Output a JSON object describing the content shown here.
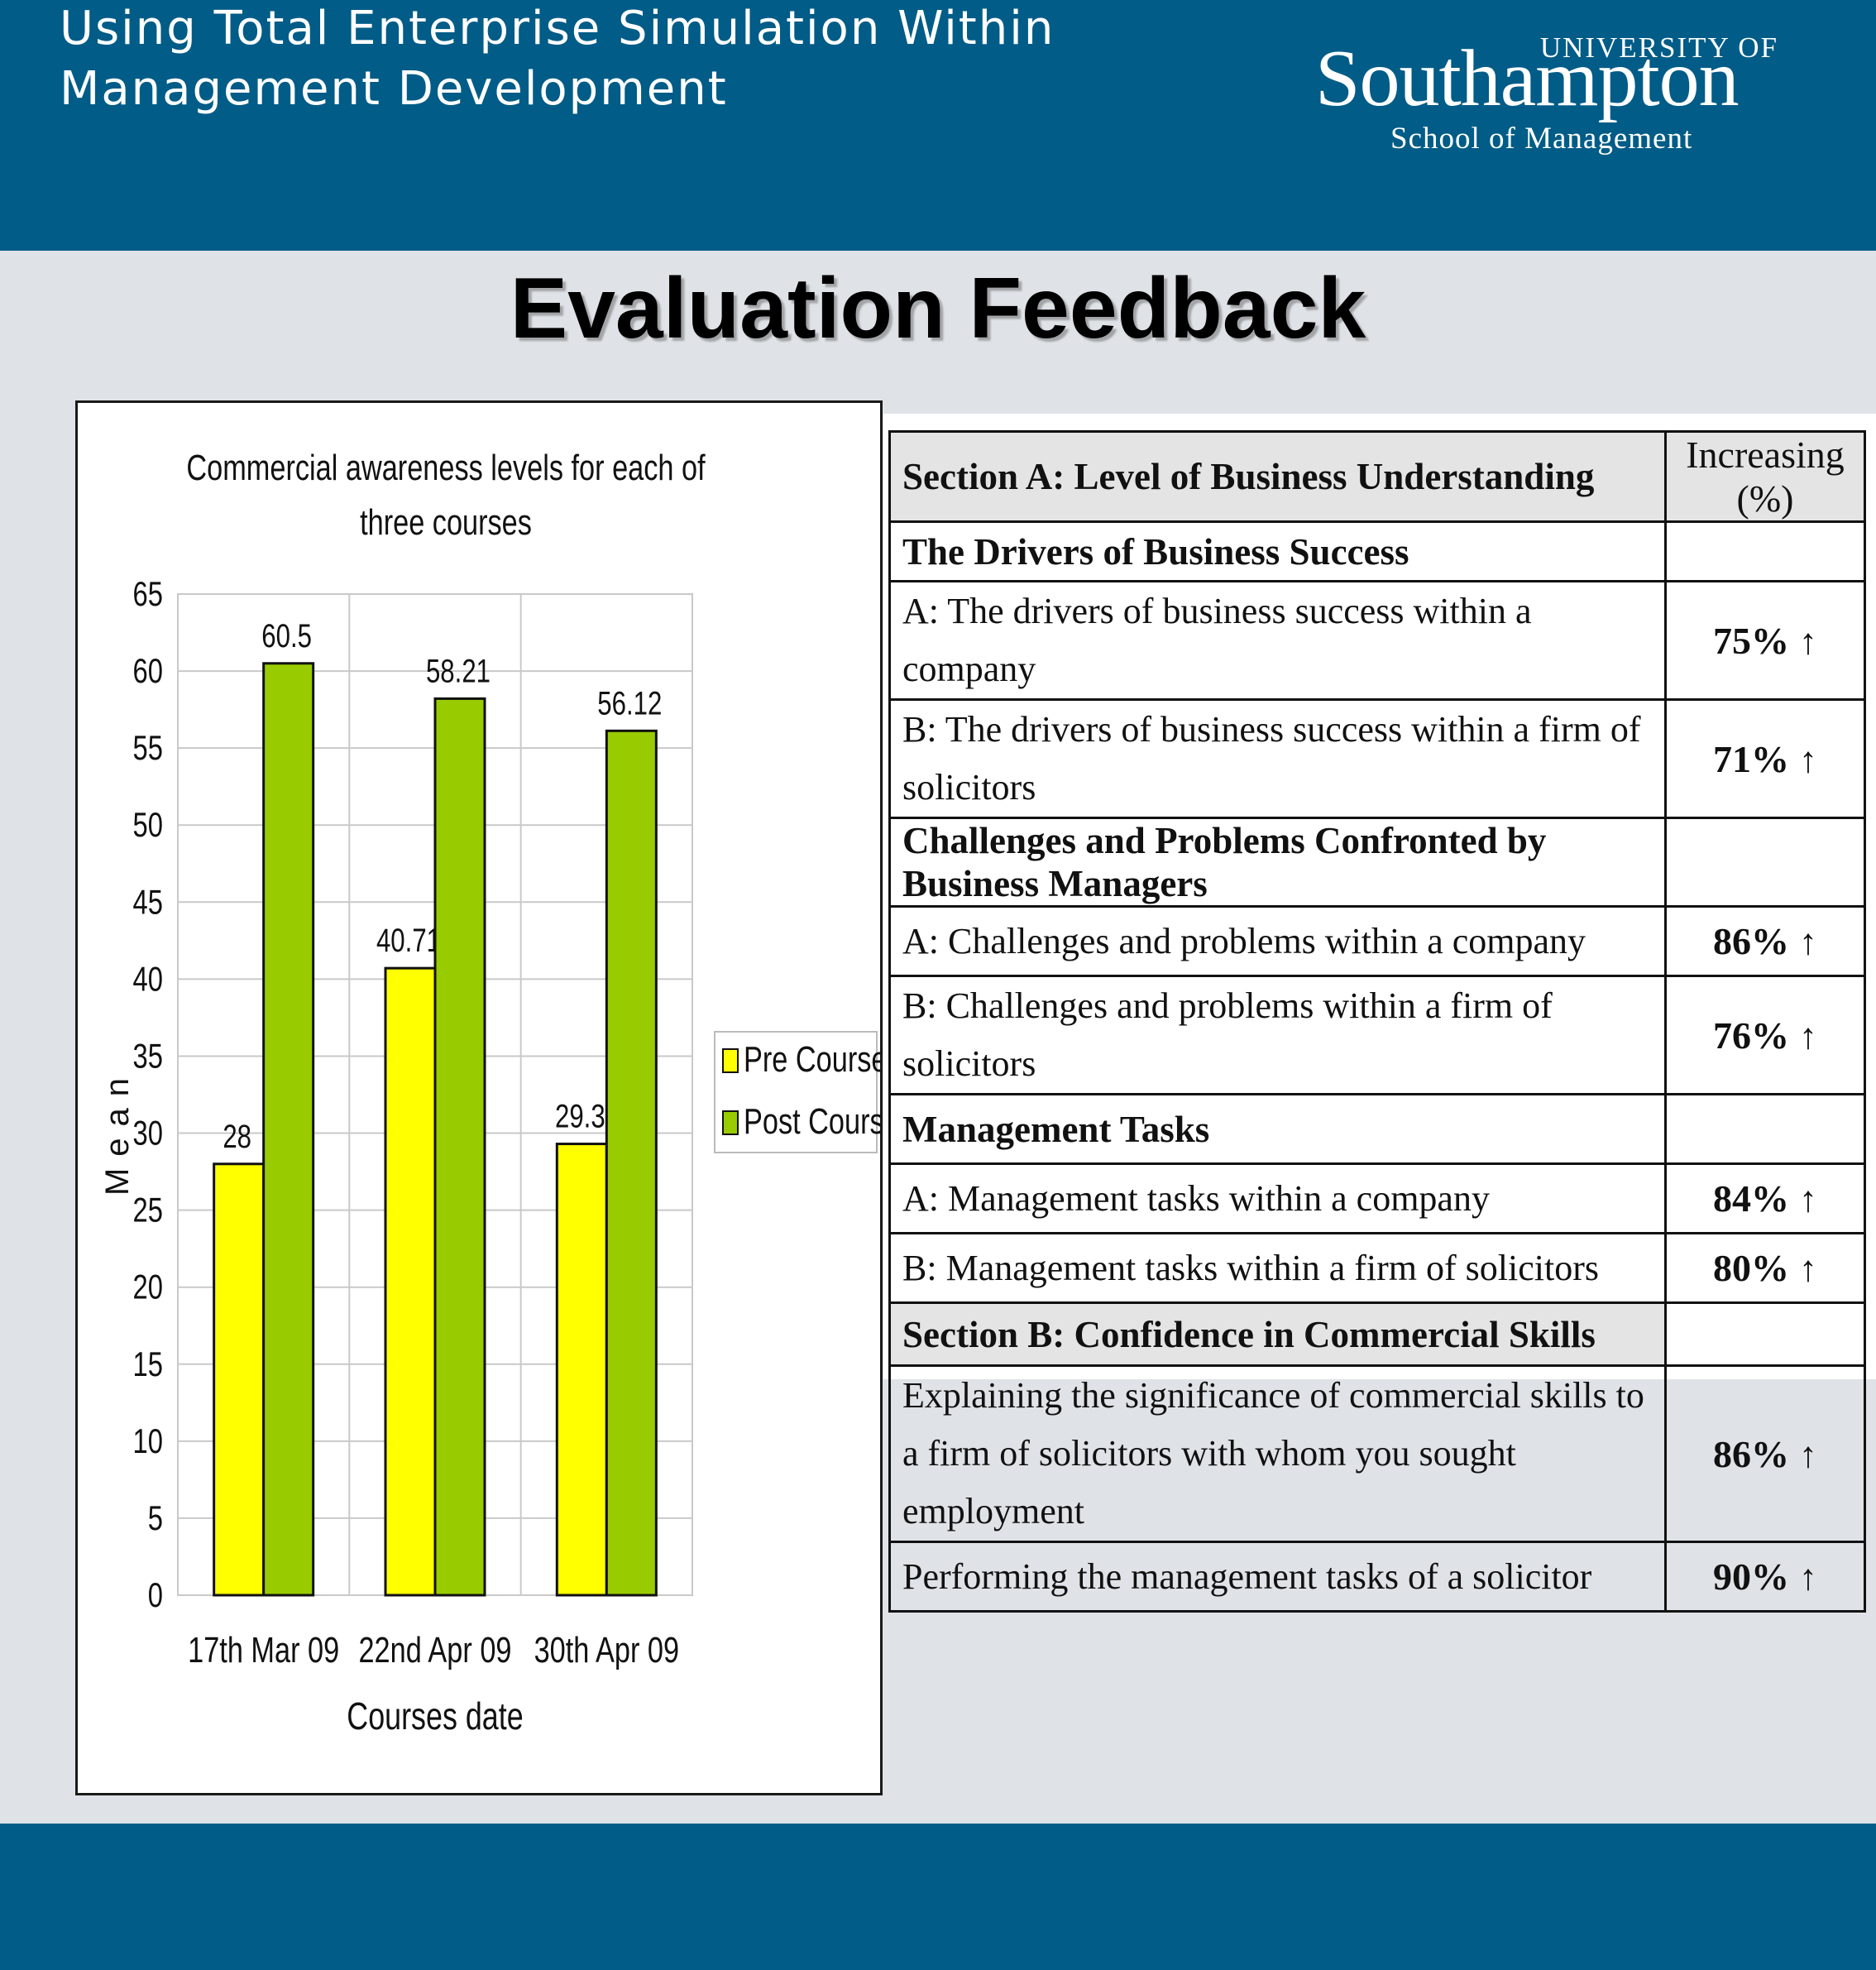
{
  "header": {
    "title_lines": [
      "Using Total Enterprise Simulation Within",
      "Management Development"
    ],
    "logo": {
      "university": "UNIVERSITY OF",
      "name": "Southampton",
      "school": "School of Management"
    }
  },
  "section_title": "Evaluation Feedback",
  "chart_data": {
    "type": "bar",
    "title": "Commercial awareness levels for each of three courses",
    "title_lines": [
      "Commercial awareness levels for each of",
      "three courses"
    ],
    "categories": [
      "17th Mar 09",
      "22nd Apr 09",
      "30th Apr 09"
    ],
    "series": [
      {
        "name": "Pre Course",
        "values": [
          28,
          40.71,
          29.3
        ],
        "labels": [
          "28",
          "40.71",
          "29.3"
        ],
        "color": "#ffff00"
      },
      {
        "name": "Post Course",
        "values": [
          60.5,
          58.21,
          56.12
        ],
        "labels": [
          "60.5",
          "58.21",
          "56.12"
        ],
        "color": "#99cc00"
      }
    ],
    "xlabel": "Courses date",
    "ylabel": "Mean",
    "ylim": [
      0,
      65
    ],
    "yticks": [
      0,
      5,
      10,
      15,
      20,
      25,
      30,
      35,
      40,
      45,
      50,
      55,
      60,
      65
    ],
    "grid": true,
    "legend_position": "right"
  },
  "table": {
    "header": {
      "section_a": "Section A: Level of Business Understanding",
      "increase": "Increasing (%)"
    },
    "arrow_icon": "up-arrow-icon",
    "groups": [
      {
        "title": "The Drivers of Business Success",
        "rows": [
          {
            "label": "A: The drivers of business success within a company",
            "value": "75%"
          },
          {
            "label": "B: The drivers of business success within a firm of solicitors",
            "value": "71%"
          }
        ]
      },
      {
        "title": "Challenges and Problems Confronted by Business Managers",
        "rows": [
          {
            "label": "A: Challenges and problems within a company",
            "value": "86%"
          },
          {
            "label": "B: Challenges and problems within a firm of solicitors",
            "value": "76%"
          }
        ]
      },
      {
        "title": "Management Tasks",
        "rows": [
          {
            "label": "A: Management tasks within a company",
            "value": "84%"
          },
          {
            "label": "B: Management tasks within a firm of solicitors",
            "value": "80%"
          }
        ]
      }
    ],
    "section_b": {
      "title": "Section B: Confidence in Commercial Skills",
      "rows": [
        {
          "label": "Explaining the significance of commercial skills to a firm of solicitors with whom you sought employment",
          "value": "86%"
        },
        {
          "label": "Performing the management tasks of a solicitor",
          "value": "90%"
        }
      ]
    }
  }
}
